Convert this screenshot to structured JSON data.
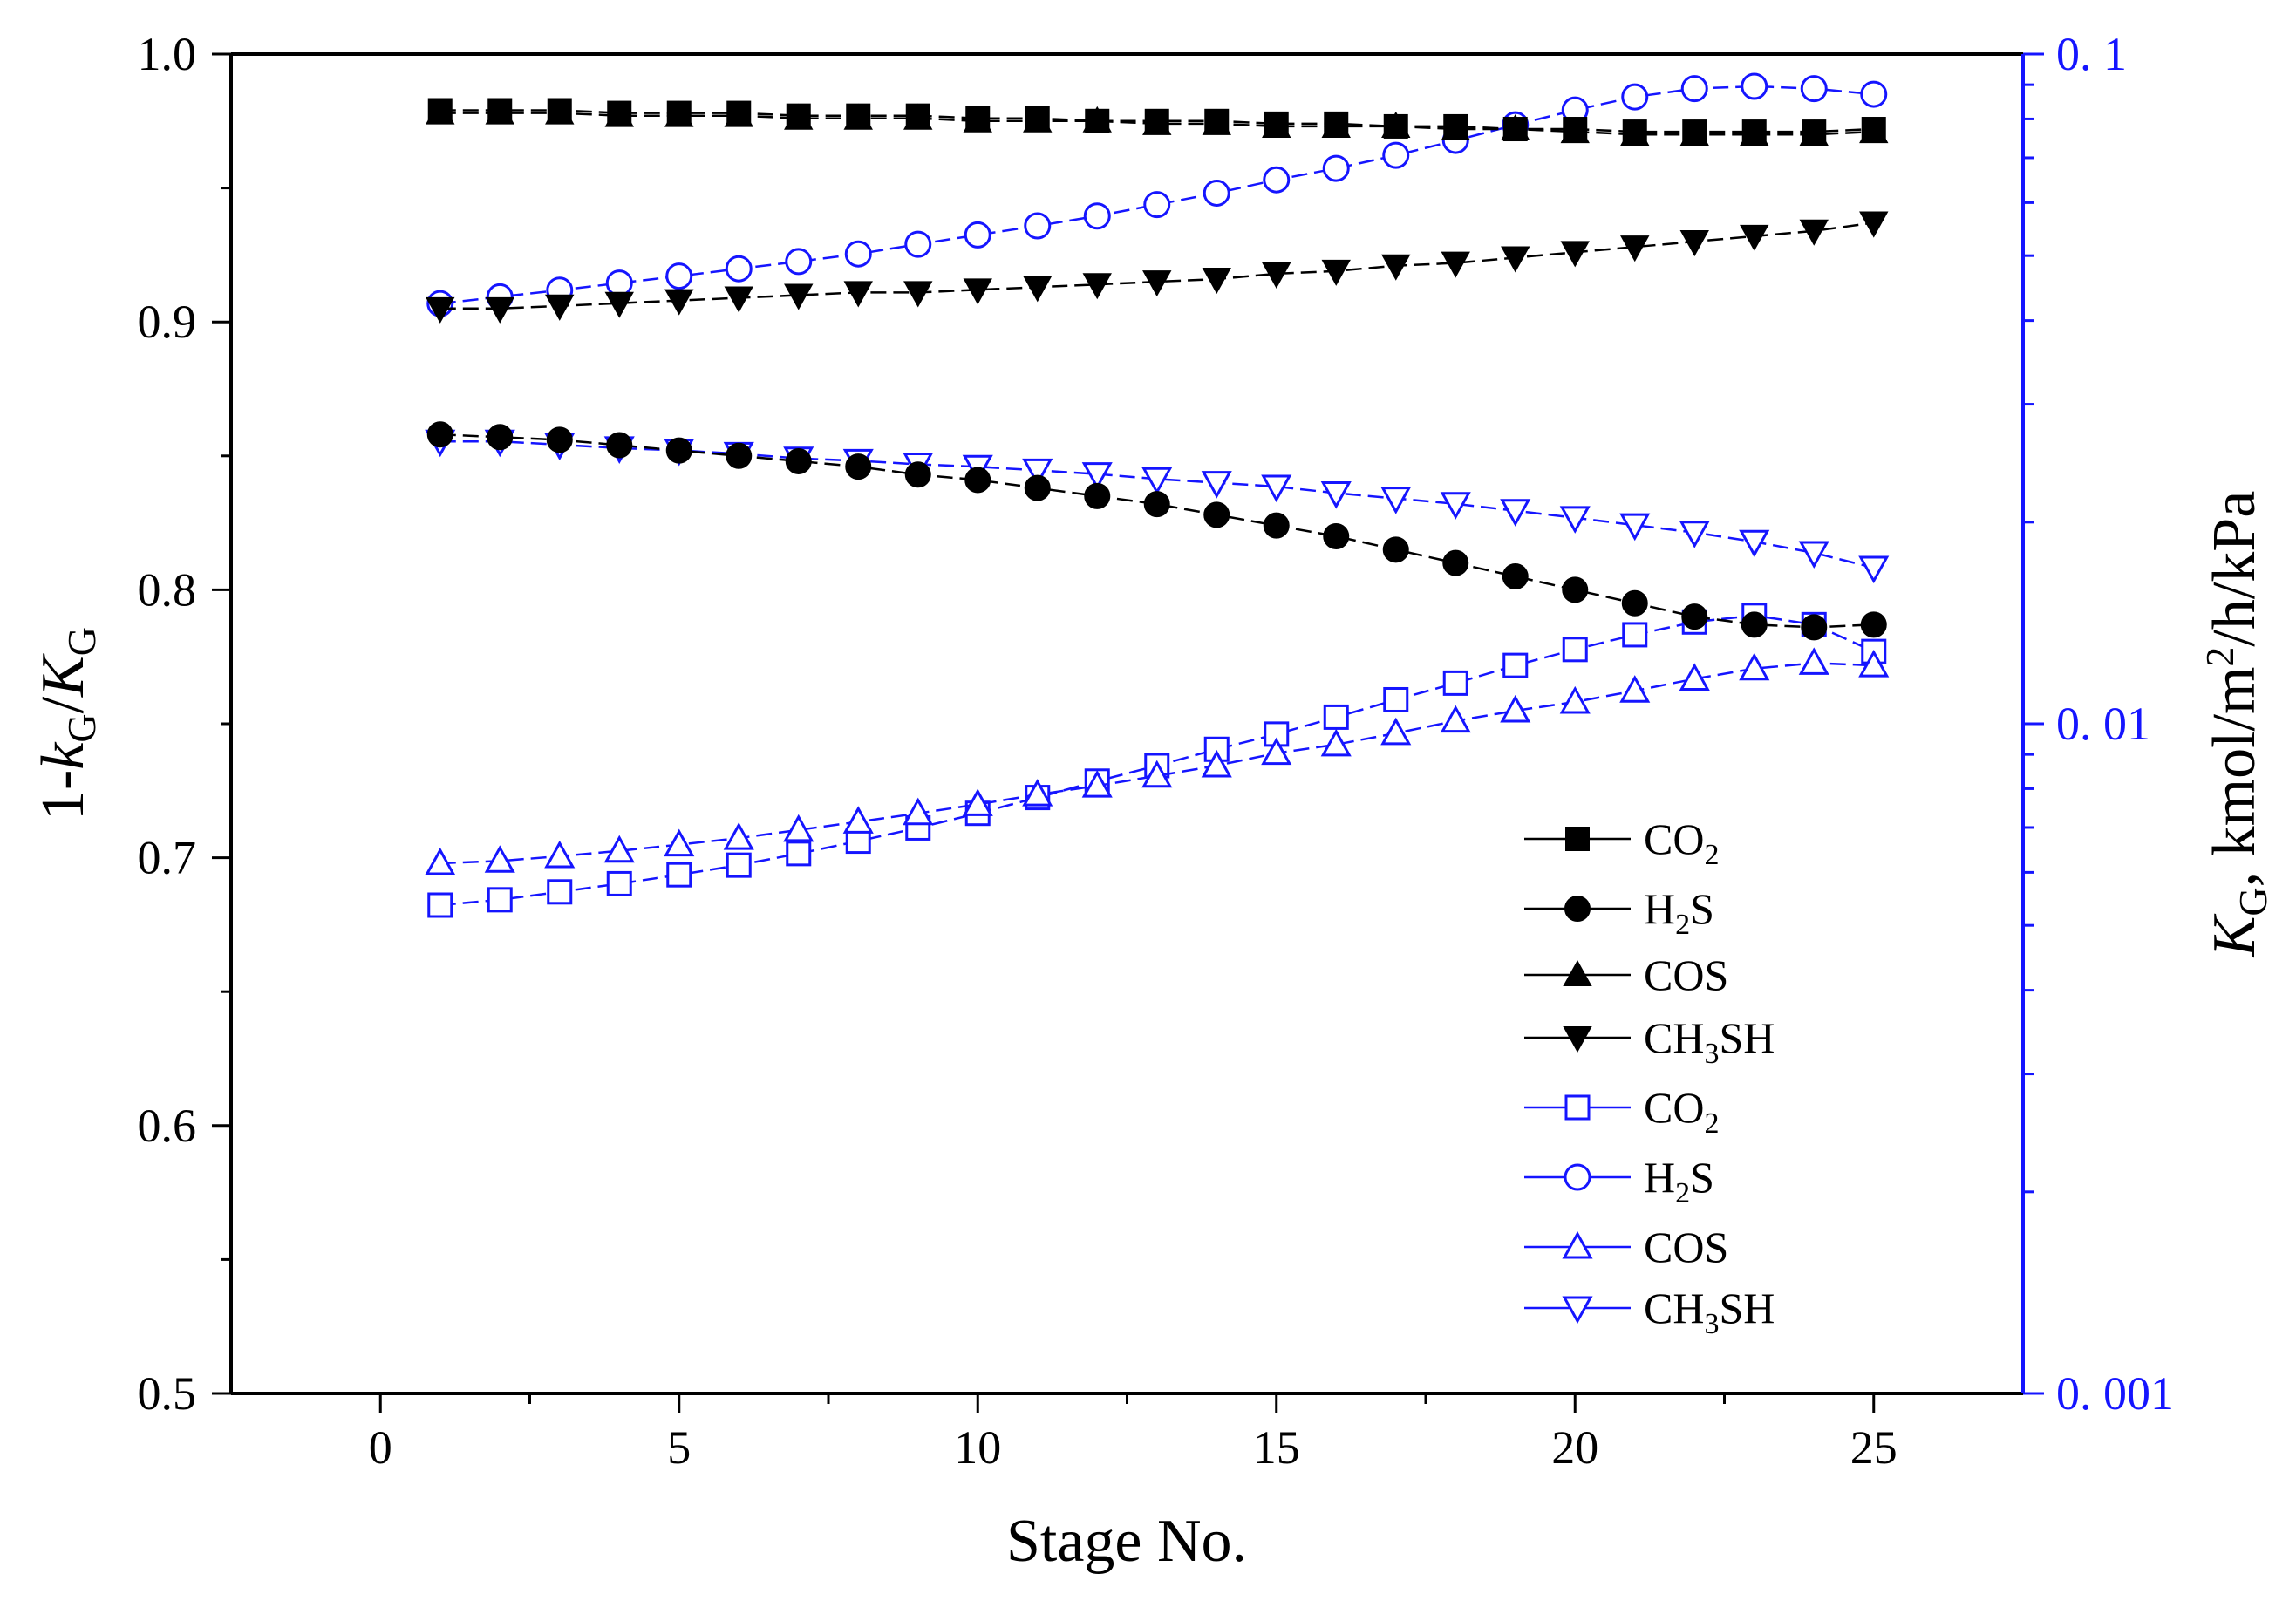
{
  "chart_data": {
    "type": "line",
    "x": [
      1,
      2,
      3,
      4,
      5,
      6,
      7,
      8,
      9,
      10,
      11,
      12,
      13,
      14,
      15,
      16,
      17,
      18,
      19,
      20,
      21,
      22,
      23,
      24,
      25
    ],
    "xlabel": "Stage No.",
    "xlim": [
      -2.5,
      27.5
    ],
    "xticks": [
      0,
      5,
      10,
      15,
      20,
      25
    ],
    "ylabel_left": {
      "prefix": "1-",
      "k": "k",
      "k_sub": "G",
      "slash": "/",
      "K": "K",
      "K_sub": "G"
    },
    "ylim_left": [
      0.5,
      1.0
    ],
    "yticks_left": [
      0.5,
      0.6,
      0.7,
      0.8,
      0.9,
      1.0
    ],
    "ytick_labels_left": [
      "0.5",
      "0.6",
      "0.7",
      "0.8",
      "0.9",
      "1.0"
    ],
    "ylabel_right": {
      "K": "K",
      "K_sub": "G",
      "rest": ", kmol/m",
      "sup": "2",
      "tail": "/h/kPa"
    },
    "yscale_right": "log",
    "ylim_right": [
      0.001,
      0.1
    ],
    "yticks_right": [
      0.001,
      0.01,
      0.1
    ],
    "ytick_labels_right": [
      "0. 001",
      "0. 01",
      "0. 1"
    ],
    "series": [
      {
        "name": "CO",
        "sub": "2",
        "suffix": "",
        "axis": "left",
        "color": "#000000",
        "marker": "square",
        "filled": true,
        "values": [
          0.979,
          0.979,
          0.979,
          0.978,
          0.978,
          0.978,
          0.977,
          0.977,
          0.977,
          0.976,
          0.976,
          0.975,
          0.975,
          0.975,
          0.974,
          0.974,
          0.973,
          0.973,
          0.972,
          0.972,
          0.971,
          0.971,
          0.971,
          0.971,
          0.972
        ]
      },
      {
        "name": "H",
        "sub": "2",
        "suffix": "S",
        "axis": "left",
        "color": "#000000",
        "marker": "circle",
        "filled": true,
        "values": [
          0.858,
          0.857,
          0.856,
          0.854,
          0.852,
          0.85,
          0.848,
          0.846,
          0.843,
          0.841,
          0.838,
          0.835,
          0.832,
          0.828,
          0.824,
          0.82,
          0.815,
          0.81,
          0.805,
          0.8,
          0.795,
          0.79,
          0.787,
          0.786,
          0.787
        ]
      },
      {
        "name": "COS",
        "sub": "",
        "suffix": "",
        "axis": "left",
        "color": "#000000",
        "marker": "triangle-up",
        "filled": true,
        "values": [
          0.978,
          0.978,
          0.978,
          0.977,
          0.977,
          0.977,
          0.976,
          0.976,
          0.976,
          0.975,
          0.975,
          0.975,
          0.974,
          0.974,
          0.973,
          0.973,
          0.973,
          0.972,
          0.972,
          0.971,
          0.97,
          0.97,
          0.97,
          0.97,
          0.971
        ]
      },
      {
        "name": "CH",
        "sub": "3",
        "suffix": "SH",
        "axis": "left",
        "color": "#000000",
        "marker": "triangle-down",
        "filled": true,
        "values": [
          0.905,
          0.905,
          0.906,
          0.907,
          0.908,
          0.909,
          0.91,
          0.911,
          0.911,
          0.912,
          0.913,
          0.914,
          0.915,
          0.916,
          0.918,
          0.919,
          0.921,
          0.922,
          0.924,
          0.926,
          0.928,
          0.93,
          0.932,
          0.934,
          0.937
        ]
      },
      {
        "name": "CO",
        "sub": "2",
        "suffix": "",
        "axis": "right",
        "color": "#1515ff",
        "marker": "square",
        "filled": false,
        "values": [
          0.00536,
          0.00546,
          0.00561,
          0.00577,
          0.00595,
          0.00615,
          0.0064,
          0.00668,
          0.00699,
          0.00735,
          0.00776,
          0.00821,
          0.00866,
          0.00916,
          0.00965,
          0.01023,
          0.01086,
          0.0115,
          0.01222,
          0.01291,
          0.01358,
          0.01419,
          0.01451,
          0.01406,
          0.01282
        ]
      },
      {
        "name": "H",
        "sub": "2",
        "suffix": "S",
        "axis": "right",
        "color": "#1515ff",
        "marker": "circle",
        "filled": false,
        "values": [
          0.0424,
          0.0434,
          0.0444,
          0.0455,
          0.0466,
          0.0478,
          0.049,
          0.0503,
          0.052,
          0.0537,
          0.0554,
          0.0573,
          0.0596,
          0.062,
          0.0649,
          0.0675,
          0.0706,
          0.0743,
          0.0784,
          0.0825,
          0.0863,
          0.0888,
          0.0895,
          0.0888,
          0.0871
        ]
      },
      {
        "name": "COS",
        "sub": "",
        "suffix": "",
        "axis": "right",
        "color": "#1515ff",
        "marker": "triangle-up",
        "filled": false,
        "values": [
          0.00619,
          0.00624,
          0.00634,
          0.00646,
          0.0066,
          0.00675,
          0.00694,
          0.00714,
          0.00735,
          0.00758,
          0.00784,
          0.00808,
          0.00836,
          0.00866,
          0.00904,
          0.00931,
          0.00968,
          0.0101,
          0.01046,
          0.01078,
          0.0112,
          0.01167,
          0.01209,
          0.01232,
          0.01222
        ]
      },
      {
        "name": "CH",
        "sub": "3",
        "suffix": "SH",
        "axis": "right",
        "color": "#1515ff",
        "marker": "triangle-down",
        "filled": false,
        "values": [
          0.0264,
          0.0264,
          0.0261,
          0.0258,
          0.0256,
          0.0253,
          0.0249,
          0.0247,
          0.0244,
          0.0242,
          0.0239,
          0.0236,
          0.0232,
          0.0229,
          0.0226,
          0.0221,
          0.0217,
          0.0213,
          0.0208,
          0.0203,
          0.0198,
          0.0193,
          0.0187,
          0.018,
          0.0171
        ]
      }
    ]
  }
}
